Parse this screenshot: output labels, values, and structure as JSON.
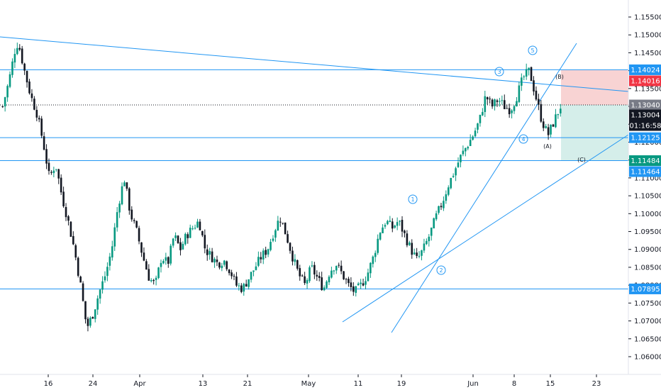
{
  "chart_data": {
    "type": "candlestick",
    "instrument_hint": "EUR/USD style price chart",
    "x_ticks": [
      "16",
      "24",
      "Apr",
      "13",
      "21",
      "May",
      "11",
      "19",
      "Jun",
      "8",
      "15",
      "23"
    ],
    "y_ticks": [
      "1.15500",
      "1.15000",
      "1.14500",
      "1.14000",
      "1.13500",
      "1.13000",
      "1.12500",
      "1.12000",
      "1.11500",
      "1.11000",
      "1.10500",
      "1.10000",
      "1.09500",
      "1.09000",
      "1.08500",
      "1.08000",
      "1.07500",
      "1.07000",
      "1.06500",
      "1.06000"
    ],
    "ylim": [
      1.0575,
      1.1585
    ],
    "grid": false,
    "horizontal_levels": [
      {
        "label": "1.14024",
        "value": 1.14024
      },
      {
        "label": "1.12125",
        "value": 1.12125
      },
      {
        "label": "1.11484",
        "value": 1.11484
      },
      {
        "label": "1.07895",
        "value": 1.07895
      }
    ],
    "current_price": {
      "label": "1.13040",
      "value": 1.1304
    },
    "price_badges": [
      {
        "label": "1.14024",
        "value": 1.14024,
        "color": "#2196f3",
        "kind": "level"
      },
      {
        "label": "1.14016",
        "value": 1.14016,
        "color": "#f23645",
        "kind": "stop"
      },
      {
        "label": "1.13040",
        "value": 1.1304,
        "color": "#787b86",
        "kind": "current"
      },
      {
        "label": "1.13004",
        "value": 1.13004,
        "color": "#131722",
        "kind": "last"
      },
      {
        "label": "01:16:58",
        "value": 1.12755,
        "color": "#131722",
        "kind": "countdown"
      },
      {
        "label": "1.12125",
        "value": 1.12125,
        "color": "#2196f3",
        "kind": "level"
      },
      {
        "label": "1.11484",
        "value": 1.11484,
        "color": "#089981",
        "kind": "target"
      },
      {
        "label": "1.11464",
        "value": 1.11464,
        "color": "#2196f3",
        "kind": "level"
      },
      {
        "label": "1.07895",
        "value": 1.07895,
        "color": "#2196f3",
        "kind": "level"
      }
    ],
    "position": {
      "entry": 1.1304,
      "stop": 1.14016,
      "target": 1.11484,
      "loss_zone_color": "#f8d3d3",
      "profit_zone_color": "#d5eeea"
    },
    "wave_labels": [
      {
        "text": "1",
        "circled": true
      },
      {
        "text": "2",
        "circled": true
      },
      {
        "text": "3",
        "circled": true
      },
      {
        "text": "4",
        "circled": true
      },
      {
        "text": "5",
        "circled": true
      },
      {
        "text": "(A)",
        "circled": false
      },
      {
        "text": "(B)",
        "circled": false
      },
      {
        "text": "(C)",
        "circled": false
      }
    ],
    "close_path": [
      [
        1.13,
        0.0
      ],
      [
        1.137,
        0.01
      ],
      [
        1.146,
        0.02
      ],
      [
        1.148,
        0.025
      ],
      [
        1.14,
        0.035
      ],
      [
        1.133,
        0.045
      ],
      [
        1.128,
        0.055
      ],
      [
        1.12,
        0.065
      ],
      [
        1.11,
        0.075
      ],
      [
        1.114,
        0.085
      ],
      [
        1.105,
        0.095
      ],
      [
        1.098,
        0.105
      ],
      [
        1.09,
        0.115
      ],
      [
        1.08,
        0.125
      ],
      [
        1.068,
        0.135
      ],
      [
        1.072,
        0.145
      ],
      [
        1.078,
        0.155
      ],
      [
        1.083,
        0.165
      ],
      [
        1.09,
        0.175
      ],
      [
        1.102,
        0.185
      ],
      [
        1.11,
        0.195
      ],
      [
        1.1,
        0.205
      ],
      [
        1.095,
        0.215
      ],
      [
        1.088,
        0.225
      ],
      [
        1.082,
        0.235
      ],
      [
        1.08,
        0.245
      ],
      [
        1.088,
        0.255
      ],
      [
        1.086,
        0.265
      ],
      [
        1.094,
        0.275
      ],
      [
        1.09,
        0.285
      ],
      [
        1.094,
        0.295
      ],
      [
        1.096,
        0.305
      ],
      [
        1.098,
        0.315
      ],
      [
        1.09,
        0.325
      ],
      [
        1.088,
        0.335
      ],
      [
        1.086,
        0.345
      ],
      [
        1.087,
        0.355
      ],
      [
        1.084,
        0.365
      ],
      [
        1.08,
        0.375
      ],
      [
        1.079,
        0.385
      ],
      [
        1.082,
        0.395
      ],
      [
        1.085,
        0.405
      ],
      [
        1.088,
        0.415
      ],
      [
        1.09,
        0.425
      ],
      [
        1.095,
        0.435
      ],
      [
        1.099,
        0.445
      ],
      [
        1.094,
        0.455
      ],
      [
        1.088,
        0.465
      ],
      [
        1.083,
        0.475
      ],
      [
        1.08,
        0.485
      ],
      [
        1.085,
        0.495
      ],
      [
        1.082,
        0.505
      ],
      [
        1.079,
        0.515
      ],
      [
        1.084,
        0.525
      ],
      [
        1.086,
        0.535
      ],
      [
        1.083,
        0.545
      ],
      [
        1.08,
        0.555
      ],
      [
        1.078,
        0.565
      ],
      [
        1.08,
        0.575
      ],
      [
        1.083,
        0.585
      ],
      [
        1.088,
        0.595
      ],
      [
        1.095,
        0.605
      ],
      [
        1.098,
        0.615
      ],
      [
        1.096,
        0.625
      ],
      [
        1.098,
        0.635
      ],
      [
        1.094,
        0.645
      ],
      [
        1.09,
        0.655
      ],
      [
        1.087,
        0.665
      ],
      [
        1.09,
        0.675
      ],
      [
        1.094,
        0.685
      ],
      [
        1.099,
        0.695
      ],
      [
        1.103,
        0.705
      ],
      [
        1.108,
        0.715
      ],
      [
        1.112,
        0.725
      ],
      [
        1.116,
        0.735
      ],
      [
        1.119,
        0.745
      ],
      [
        1.122,
        0.755
      ],
      [
        1.126,
        0.765
      ],
      [
        1.133,
        0.775
      ],
      [
        1.13,
        0.785
      ],
      [
        1.132,
        0.795
      ],
      [
        1.13,
        0.805
      ],
      [
        1.129,
        0.815
      ],
      [
        1.133,
        0.825
      ],
      [
        1.138,
        0.835
      ],
      [
        1.14,
        0.845
      ],
      [
        1.133,
        0.855
      ],
      [
        1.126,
        0.865
      ],
      [
        1.122,
        0.875
      ],
      [
        1.126,
        0.885
      ],
      [
        1.13,
        0.895
      ]
    ]
  }
}
